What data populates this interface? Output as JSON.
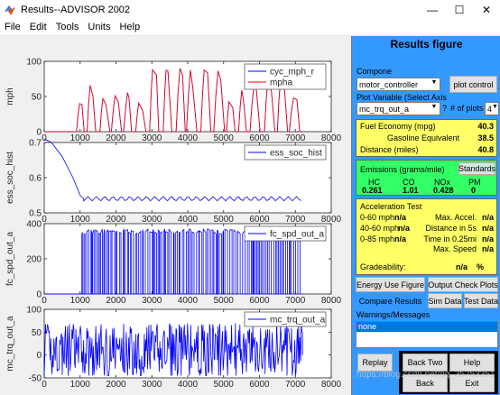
{
  "window": {
    "title": "Results--ADVISOR 2002"
  },
  "menu": [
    "File",
    "Edit",
    "Tools",
    "Units",
    "Help"
  ],
  "panel": {
    "title": "Results figure",
    "component_label": "Compone",
    "component_value": "motor_controller",
    "plot_control": "plot control",
    "plot_variable_label": "Plot Variable (Select Axis",
    "plot_variable_value": "mc_trq_out_a",
    "question": "?",
    "num_plots_label": "# of plots",
    "num_plots_value": "4",
    "fuel_economy_label": "Fuel Economy (mpg)",
    "fuel_economy_value": "40.3",
    "gasoline_equiv_label": "Gasoline Equivalent",
    "gasoline_equiv_value": "38.5",
    "distance_label": "Distance (miles)",
    "distance_value": "40.8",
    "emissions_label": "Emissions (grams/mile)",
    "standards_button": "Standards",
    "emissions": [
      {
        "name": "HC",
        "value": "0.261"
      },
      {
        "name": "CO",
        "value": "1.01"
      },
      {
        "name": "NOx",
        "value": "0.428"
      },
      {
        "name": "PM",
        "value": "0"
      }
    ],
    "accel_title": "Acceleration Test",
    "accel_left": [
      {
        "label": "0-60 mph",
        "value": "n/a"
      },
      {
        "label": "40-60 mph",
        "value": "n/a"
      },
      {
        "label": "0-85 mph",
        "value": "n/a"
      }
    ],
    "accel_right": [
      {
        "label": "Max. Accel.",
        "value": "n/a"
      },
      {
        "label": "Distance in 5s",
        "value": "n/a"
      },
      {
        "label": "Time in 0.25mi",
        "value": "n/a"
      },
      {
        "label": "Max. Speed",
        "value": "n/a"
      }
    ],
    "gradeability_label": "Gradeability:",
    "gradeability_value": "n/a",
    "gradeability_unit": "%",
    "energy_use_button": "Energy Use Figure",
    "output_check_button": "Output Check Plots",
    "tabs": [
      "Compare Results",
      "Sim Data",
      "Test Data"
    ],
    "warnings_label": "Warnings/Messages",
    "warnings_value": "none",
    "replay_button": "Replay",
    "back_two_button": "Back Two",
    "help_button": "Help",
    "back_button": "Back",
    "exit_button": "Exit"
  },
  "watermark": "https://blog.csdn.net/qq_35753351",
  "chart_data": [
    {
      "type": "line",
      "ylabel": "mph",
      "ylim": [
        0,
        100
      ],
      "yticks": [
        0,
        50,
        100
      ],
      "xlim": [
        0,
        8000
      ],
      "xticks": [
        0,
        1000,
        2000,
        3000,
        4000,
        5000,
        6000,
        7000,
        8000
      ],
      "legend": "top-right",
      "series": [
        {
          "name": "cyc_mph_r",
          "color": "#0000ff",
          "values": [
            0,
            0,
            56,
            5,
            0
          ]
        },
        {
          "name": "mpha",
          "color": "#ff0000",
          "values": [
            0,
            0,
            56,
            5,
            0
          ]
        }
      ]
    },
    {
      "type": "line",
      "ylabel": "ess_soc_hist",
      "ylim": [
        0.5,
        0.7
      ],
      "yticks": [
        0.5,
        0.6,
        0.7
      ],
      "xlim": [
        0,
        8000
      ],
      "xticks": [
        0,
        1000,
        2000,
        3000,
        4000,
        5000,
        6000,
        7000,
        8000
      ],
      "legend": "top-right",
      "series": [
        {
          "name": "ess_soc_hist",
          "color": "#0000ff",
          "x": [
            0,
            200,
            500,
            800,
            1000,
            1100,
            7200
          ],
          "values": [
            0.71,
            0.7,
            0.66,
            0.6,
            0.55,
            0.54,
            0.54
          ]
        }
      ]
    },
    {
      "type": "line",
      "ylabel": "fc_spd_out_a",
      "ylim": [
        0,
        400
      ],
      "yticks": [
        0,
        200,
        400
      ],
      "xlim": [
        0,
        8000
      ],
      "xticks": [
        0,
        1000,
        2000,
        3000,
        4000,
        5000,
        6000,
        7000,
        8000
      ],
      "legend": "top-right",
      "series": [
        {
          "name": "fc_spd_out_a",
          "color": "#0000ff",
          "values": [
            0,
            360,
            0
          ]
        }
      ]
    },
    {
      "type": "line",
      "ylabel": "mc_trq_out_a",
      "ylim": [
        -50,
        100
      ],
      "yticks": [
        -50,
        0,
        50,
        100
      ],
      "xlim": [
        0,
        8000
      ],
      "xticks": [
        0,
        1000,
        2000,
        3000,
        4000,
        5000,
        6000,
        7000,
        8000
      ],
      "legend": "top-right",
      "series": [
        {
          "name": "mc_trq_out_a",
          "color": "#0000ff",
          "values": [
            -40,
            80,
            -40
          ]
        }
      ]
    }
  ]
}
